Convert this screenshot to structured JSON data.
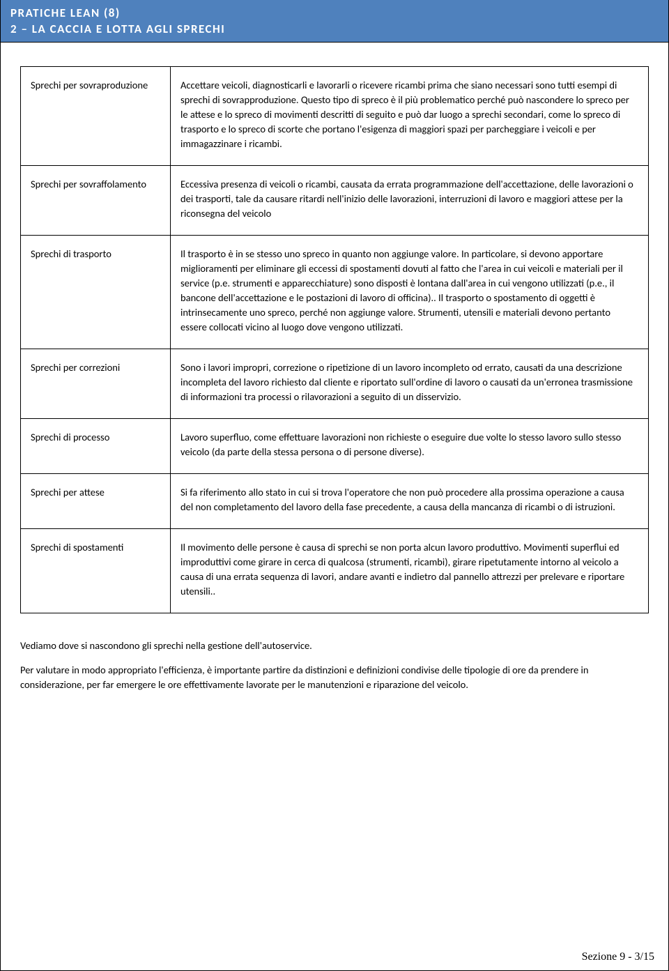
{
  "header": {
    "line1": "PRATICHE LEAN (8)",
    "line2": "2 – LA CACCIA E LOTTA AGLI SPRECHI"
  },
  "colors": {
    "header_bg": "#4f81bd",
    "header_text": "#ffffff",
    "border": "#000000",
    "body_text": "#000000",
    "page_bg": "#ffffff"
  },
  "table": {
    "rows": [
      {
        "label": "Sprechi per sovraproduzione",
        "desc": "Accettare veicoli, diagnosticarli e lavorarli o ricevere ricambi prima che siano necessari sono tutti esempi di sprechi di sovrapproduzione. Questo tipo di spreco è il più problematico perché può nascondere lo spreco per le attese e lo spreco di movimenti descritti di seguito e può dar luogo a sprechi secondari, come lo spreco di trasporto e lo spreco di scorte che portano l'esigenza di maggiori spazi per parcheggiare i veicoli e per immagazzinare i ricambi."
      },
      {
        "label": "Sprechi per sovraffolamento",
        "desc": "Eccessiva presenza di veicoli o ricambi, causata da errata programmazione dell'accettazione, delle lavorazioni o dei trasporti, tale da causare ritardi nell'inizio delle lavorazioni, interruzioni di lavoro e maggiori attese per la riconsegna del veicolo"
      },
      {
        "label": "Sprechi di trasporto",
        "desc": "Il trasporto è in se stesso uno spreco in quanto non aggiunge valore. In particolare, si devono apportare miglioramenti per eliminare gli eccessi di spostamenti dovuti al fatto che l'area in cui veicoli e materiali per il service (p.e. strumenti e apparecchiature) sono disposti è lontana dall'area in cui vengono utilizzati (p.e., il bancone dell'accettazione e le postazioni di lavoro di officina).. Il trasporto o spostamento di oggetti è intrinsecamente uno spreco, perché non aggiunge valore. Strumenti, utensili e materiali devono pertanto essere collocati vicino al luogo dove vengono utilizzati."
      },
      {
        "label": "Sprechi per correzioni",
        "desc": "Sono i lavori impropri, correzione o ripetizione di un lavoro incompleto od errato, causati da una descrizione incompleta del lavoro richiesto dal cliente e riportato sull'ordine di lavoro o causati da un'erronea trasmissione di informazioni tra processi o rilavorazioni a seguito di un disservizio."
      },
      {
        "label": "Sprechi di processo",
        "desc": "Lavoro superfluo, come effettuare lavorazioni non richieste o eseguire due volte lo stesso lavoro sullo stesso veicolo (da parte della stessa persona o di persone diverse)."
      },
      {
        "label": "Sprechi per attese",
        "desc": "Si fa riferimento allo stato in cui si trova l'operatore che non può procedere alla prossima operazione a causa del non completamento del lavoro della fase precedente, a causa della mancanza di ricambi o di istruzioni."
      },
      {
        "label": "Sprechi di spostamenti",
        "desc": "Il movimento delle persone è causa di sprechi se non porta alcun lavoro produttivo. Movimenti superflui ed improduttivi come girare in cerca di qualcosa (strumenti, ricambi), girare ripetutamente intorno al veicolo a causa di una errata sequenza di lavori, andare avanti e indietro dal pannello attrezzi per prelevare e riportare utensili.."
      }
    ]
  },
  "after_paragraphs": [
    "Vediamo dove si nascondono gli sprechi nella gestione dell'autoservice.",
    "Per valutare in modo appropriato l'efficienza, è importante partire da distinzioni e definizioni condivise delle tipologie di ore da prendere in considerazione, per far emergere le ore effettivamente lavorate per le manutenzioni e riparazione del veicolo."
  ],
  "footer": "Sezione 9 - 3/15"
}
